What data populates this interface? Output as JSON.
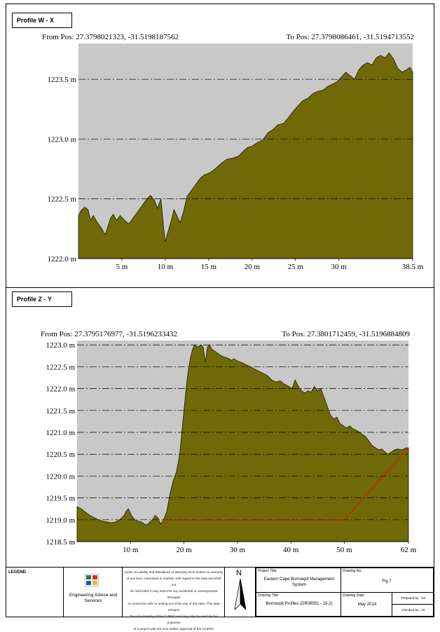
{
  "panels": [
    {
      "title": "Profile W - X",
      "from": "From Pos: 27.3798021323, -31.5198187562",
      "to": "To Pos: 27.3798086461, -31.5194713552"
    },
    {
      "title": "Profile Z - Y",
      "from": "From Pos: 27.3795176977, -31.5196233432",
      "to": "To Pos: 27.3801712459, -31.5196884809"
    }
  ],
  "chart_data": [
    {
      "type": "area",
      "title": "Profile W - X",
      "xlabel": "",
      "ylabel": "",
      "xlim": [
        0,
        38.5
      ],
      "ylim": [
        1222.0,
        1223.8
      ],
      "x_ticks": [
        5,
        10,
        15,
        20,
        25,
        30,
        38.5
      ],
      "x_tick_labels": [
        "5 m",
        "10 m",
        "15 m",
        "20 m",
        "25 m",
        "30 m",
        "38.5 m"
      ],
      "y_ticks": [
        1222.0,
        1222.5,
        1223.0,
        1223.5
      ],
      "y_tick_labels": [
        "1222.0 m",
        "1222.5 m",
        "1223.0 m",
        "1223.5 m"
      ],
      "grid": "horizontal dash-dot",
      "fill_color": "#6f6a07",
      "background": "#c8c8c8",
      "series": [
        {
          "x": [
            0,
            0.3,
            0.7,
            1.1,
            1.4,
            1.7,
            2.1,
            2.6,
            3.1,
            3.7,
            4.0,
            4.4,
            4.8,
            5.3,
            5.8,
            6.3,
            6.7,
            7.3,
            7.8,
            8.3,
            8.8,
            9.1,
            9.5,
            9.8,
            10.0,
            10.3,
            10.7,
            11.0,
            11.4,
            11.7,
            12.1,
            12.5,
            13.0,
            13.5,
            14.0,
            14.5,
            15.2,
            15.9,
            16.5,
            17.1,
            17.8,
            18.5,
            19.0,
            19.5,
            20.0,
            20.6,
            21.2,
            21.8,
            22.4,
            23.0,
            23.6,
            24.2,
            24.7,
            25.2,
            25.8,
            26.4,
            27.0,
            27.6,
            28.2,
            28.7,
            29.3,
            29.8,
            30.3,
            30.8,
            31.3,
            31.8,
            32.3,
            32.8,
            33.3,
            33.8,
            34.3,
            34.8,
            35.3,
            35.8,
            36.3,
            36.8,
            37.3,
            37.8,
            38.2,
            38.5
          ],
          "y": [
            1222.36,
            1222.4,
            1222.43,
            1222.41,
            1222.32,
            1222.36,
            1222.31,
            1222.26,
            1222.2,
            1222.34,
            1222.37,
            1222.32,
            1222.36,
            1222.32,
            1222.29,
            1222.34,
            1222.38,
            1222.44,
            1222.49,
            1222.53,
            1222.48,
            1222.42,
            1222.5,
            1222.27,
            1222.14,
            1222.22,
            1222.32,
            1222.41,
            1222.35,
            1222.3,
            1222.39,
            1222.52,
            1222.57,
            1222.62,
            1222.67,
            1222.7,
            1222.72,
            1222.76,
            1222.8,
            1222.83,
            1222.84,
            1222.86,
            1222.9,
            1222.93,
            1222.94,
            1222.97,
            1222.99,
            1223.05,
            1223.08,
            1223.12,
            1223.13,
            1223.18,
            1223.23,
            1223.27,
            1223.32,
            1223.34,
            1223.38,
            1223.4,
            1223.41,
            1223.44,
            1223.46,
            1223.48,
            1223.52,
            1223.56,
            1223.53,
            1223.5,
            1223.58,
            1223.62,
            1223.64,
            1223.62,
            1223.68,
            1223.7,
            1223.68,
            1223.72,
            1223.67,
            1223.59,
            1223.56,
            1223.58,
            1223.6,
            1223.56
          ]
        }
      ]
    },
    {
      "type": "area",
      "title": "Profile Z - Y",
      "xlabel": "",
      "ylabel": "",
      "xlim": [
        0,
        62
      ],
      "ylim": [
        1218.5,
        1223.1
      ],
      "x_ticks": [
        10,
        20,
        30,
        40,
        50,
        62
      ],
      "x_tick_labels": [
        "10 m",
        "20 m",
        "30 m",
        "40 m",
        "50 m",
        "62 m"
      ],
      "y_ticks": [
        1218.5,
        1219.0,
        1219.5,
        1220.0,
        1220.5,
        1221.0,
        1221.5,
        1222.0,
        1222.5,
        1223.0
      ],
      "y_tick_labels": [
        "1218.5 m",
        "1219.0 m",
        "1219.5 m",
        "1220.0 m",
        "1220.5 m",
        "1221.0 m",
        "1221.5 m",
        "1222.0 m",
        "1222.5 m",
        "1223.0 m"
      ],
      "grid": "horizontal dash-dot",
      "fill_color": "#6f6a07",
      "background": "#c8c8c8",
      "series": [
        {
          "name": "",
          "x": [
            0,
            0.8,
            1.6,
            2.4,
            3.2,
            4.0,
            4.8,
            5.6,
            6.4,
            7.2,
            8.0,
            8.8,
            9.2,
            9.6,
            10.2,
            10.8,
            11.4,
            12.0,
            12.6,
            13.1,
            13.6,
            14.1,
            14.6,
            15.1,
            15.6,
            16.2,
            16.8,
            17.4,
            18.0,
            18.6,
            19.2,
            19.6,
            20.0,
            20.4,
            20.8,
            21.2,
            21.6,
            22.0,
            22.4,
            22.8,
            23.2,
            23.6,
            24.0,
            24.4,
            24.8,
            25.2,
            25.8,
            26.4,
            27.0,
            27.6,
            28.2,
            28.8,
            29.4,
            30.0,
            30.8,
            31.6,
            32.4,
            33.2,
            34.0,
            34.8,
            35.6,
            36.4,
            37.2,
            38.0,
            38.8,
            39.6,
            40.2,
            40.8,
            41.4,
            42.0,
            42.6,
            43.2,
            43.8,
            44.4,
            45.0,
            45.6,
            46.2,
            46.8,
            47.4,
            48.0,
            48.6,
            49.2,
            49.8,
            50.4,
            51.0,
            51.6,
            52.2,
            52.8,
            53.4,
            54.0,
            54.6,
            55.2,
            55.8,
            56.4,
            57.0,
            57.6,
            58.2,
            58.8,
            59.4,
            60.0,
            60.6,
            61.2,
            61.6,
            62.0
          ],
          "y": [
            1219.3,
            1219.25,
            1219.17,
            1219.1,
            1219.05,
            1219.0,
            1218.97,
            1218.95,
            1218.93,
            1218.95,
            1219.0,
            1219.1,
            1219.2,
            1219.25,
            1219.1,
            1219.0,
            1218.97,
            1218.95,
            1218.9,
            1218.88,
            1218.95,
            1219.0,
            1219.1,
            1219.05,
            1218.9,
            1219.0,
            1219.2,
            1219.6,
            1219.9,
            1220.1,
            1220.5,
            1221.0,
            1221.5,
            1222.0,
            1222.4,
            1222.7,
            1222.9,
            1223.0,
            1222.95,
            1222.97,
            1223.0,
            1222.95,
            1222.6,
            1222.95,
            1223.0,
            1222.9,
            1222.85,
            1222.8,
            1222.75,
            1222.72,
            1222.7,
            1222.65,
            1222.68,
            1222.63,
            1222.6,
            1222.55,
            1222.5,
            1222.45,
            1222.4,
            1222.35,
            1222.3,
            1222.2,
            1222.15,
            1222.18,
            1222.1,
            1222.05,
            1222.0,
            1222.2,
            1222.05,
            1221.95,
            1221.9,
            1221.95,
            1221.92,
            1222.05,
            1221.95,
            1222.0,
            1221.8,
            1221.6,
            1221.4,
            1221.3,
            1221.35,
            1221.2,
            1221.15,
            1221.1,
            1221.15,
            1221.08,
            1221.05,
            1221.0,
            1220.95,
            1220.9,
            1220.8,
            1220.7,
            1220.65,
            1220.6,
            1220.62,
            1220.55,
            1220.5,
            1220.55,
            1220.6,
            1220.62,
            1220.6,
            1220.62,
            1220.65,
            1220.62
          ]
        },
        {
          "name": "",
          "style": "red dotted line",
          "x": [
            16.0,
            50.0,
            62.0
          ],
          "y": [
            1219.0,
            1219.0,
            1220.65
          ]
        }
      ]
    }
  ],
  "legend": {
    "title": "LEGEND",
    "company": "Engineering Advice and Services",
    "disclaimer": [
      "Limits of Liability and Disclaimer of Warranty EAS makes no warranty",
      "of any kind, expressed or implied, with regard to the data and shall not",
      "be held liable in any event for any incidental or consequential damages",
      "in connection with or arising out of the use of this data. This data remains",
      "the sole property of the CLIENT and may only be used for the purposes",
      "of a project with the prior written approval of the CLIENT."
    ],
    "north": "N",
    "project_title_label": "Project Title:",
    "project_title": "Eastern Cape Borrowpit Management System",
    "drawing_no_label": "Drawing No.:",
    "drawing_no": "Fig 7",
    "drawing_title_label": "Drawing Title:",
    "drawing_title": "Borrowpit Profiles (DR08551 - 19.2)",
    "drawing_date_label": "Drawing Date:",
    "drawing_date": "May 2014",
    "prepared_by": "Prepared by : SS",
    "checked_by": "Checked by : JV"
  }
}
